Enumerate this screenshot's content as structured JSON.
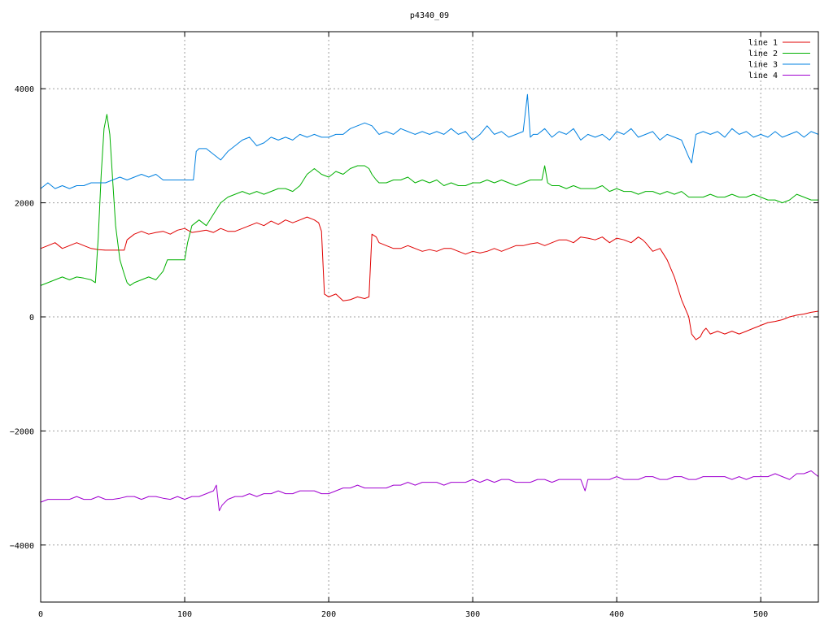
{
  "chart_data": {
    "type": "line",
    "title": "p4340_09",
    "xlabel": "",
    "ylabel": "",
    "xlim": [
      0,
      540
    ],
    "ylim": [
      -5000,
      5000
    ],
    "x_ticks": [
      0,
      100,
      200,
      300,
      400,
      500
    ],
    "y_ticks": [
      -4000,
      -2000,
      0,
      2000,
      4000
    ],
    "grid": true,
    "legend_position": "top-right",
    "series": [
      {
        "name": "line 1",
        "color": "#e00000",
        "x": [
          0,
          5,
          10,
          15,
          20,
          25,
          30,
          35,
          40,
          45,
          50,
          55,
          58,
          60,
          65,
          70,
          75,
          80,
          85,
          90,
          95,
          100,
          105,
          110,
          115,
          120,
          125,
          130,
          135,
          140,
          145,
          150,
          155,
          160,
          165,
          170,
          175,
          180,
          185,
          190,
          193,
          195,
          197,
          200,
          205,
          210,
          215,
          220,
          225,
          228,
          230,
          233,
          235,
          240,
          245,
          250,
          255,
          260,
          265,
          270,
          275,
          280,
          285,
          290,
          295,
          300,
          305,
          310,
          315,
          320,
          325,
          330,
          335,
          340,
          345,
          350,
          355,
          360,
          365,
          370,
          375,
          380,
          385,
          390,
          395,
          400,
          405,
          410,
          415,
          418,
          420,
          425,
          430,
          435,
          440,
          445,
          450,
          452,
          455,
          458,
          460,
          462,
          465,
          470,
          475,
          480,
          485,
          490,
          495,
          500,
          505,
          510,
          515,
          520,
          525,
          530,
          535,
          540
        ],
        "y": [
          1200,
          1250,
          1300,
          1200,
          1250,
          1300,
          1250,
          1200,
          1180,
          1170,
          1170,
          1170,
          1170,
          1350,
          1450,
          1500,
          1450,
          1480,
          1500,
          1450,
          1520,
          1550,
          1480,
          1500,
          1520,
          1480,
          1550,
          1500,
          1500,
          1550,
          1600,
          1650,
          1600,
          1680,
          1620,
          1700,
          1650,
          1700,
          1750,
          1700,
          1650,
          1500,
          400,
          350,
          400,
          280,
          300,
          350,
          320,
          350,
          1450,
          1400,
          1300,
          1250,
          1200,
          1200,
          1250,
          1200,
          1150,
          1180,
          1150,
          1200,
          1200,
          1150,
          1100,
          1150,
          1120,
          1150,
          1200,
          1150,
          1200,
          1250,
          1250,
          1280,
          1300,
          1250,
          1300,
          1350,
          1350,
          1300,
          1400,
          1380,
          1350,
          1400,
          1300,
          1380,
          1350,
          1300,
          1400,
          1350,
          1300,
          1150,
          1200,
          1000,
          700,
          300,
          0,
          -300,
          -400,
          -350,
          -250,
          -200,
          -300,
          -250,
          -300,
          -250,
          -300,
          -250,
          -200,
          -150,
          -100,
          -80,
          -50,
          0,
          30,
          50,
          80,
          100
        ],
        "line_width": 1
      },
      {
        "name": "line 2",
        "color": "#00b000",
        "x": [
          0,
          5,
          10,
          15,
          20,
          25,
          30,
          35,
          38,
          40,
          42,
          44,
          46,
          48,
          50,
          52,
          55,
          58,
          60,
          62,
          65,
          70,
          75,
          80,
          85,
          88,
          90,
          95,
          100,
          102,
          105,
          110,
          115,
          120,
          125,
          130,
          135,
          140,
          145,
          150,
          155,
          160,
          165,
          170,
          175,
          180,
          185,
          190,
          195,
          200,
          205,
          210,
          215,
          220,
          225,
          228,
          230,
          233,
          235,
          240,
          245,
          250,
          255,
          260,
          265,
          270,
          275,
          280,
          285,
          290,
          295,
          300,
          305,
          310,
          315,
          320,
          325,
          330,
          335,
          340,
          345,
          348,
          350,
          352,
          355,
          360,
          365,
          370,
          375,
          380,
          385,
          390,
          395,
          400,
          405,
          410,
          415,
          420,
          425,
          430,
          435,
          440,
          445,
          450,
          455,
          460,
          465,
          470,
          475,
          480,
          485,
          490,
          495,
          500,
          505,
          510,
          515,
          520,
          525,
          530,
          535,
          540
        ],
        "y": [
          550,
          600,
          650,
          700,
          650,
          700,
          680,
          650,
          600,
          1400,
          2500,
          3300,
          3550,
          3200,
          2400,
          1600,
          1000,
          750,
          600,
          550,
          600,
          650,
          700,
          650,
          800,
          1000,
          1000,
          1000,
          1000,
          1300,
          1600,
          1700,
          1600,
          1800,
          2000,
          2100,
          2150,
          2200,
          2150,
          2200,
          2150,
          2200,
          2250,
          2250,
          2200,
          2300,
          2500,
          2600,
          2500,
          2450,
          2550,
          2500,
          2600,
          2650,
          2650,
          2600,
          2500,
          2400,
          2350,
          2350,
          2400,
          2400,
          2450,
          2350,
          2400,
          2350,
          2400,
          2300,
          2350,
          2300,
          2300,
          2350,
          2350,
          2400,
          2350,
          2400,
          2350,
          2300,
          2350,
          2400,
          2400,
          2400,
          2650,
          2350,
          2300,
          2300,
          2250,
          2300,
          2250,
          2250,
          2250,
          2300,
          2200,
          2250,
          2200,
          2200,
          2150,
          2200,
          2200,
          2150,
          2200,
          2150,
          2200,
          2100,
          2100,
          2100,
          2150,
          2100,
          2100,
          2150,
          2100,
          2100,
          2150,
          2100,
          2050,
          2050,
          2000,
          2050,
          2150,
          2100,
          2050,
          2050
        ],
        "line_width": 1
      },
      {
        "name": "line 3",
        "color": "#0080e0",
        "x": [
          0,
          5,
          10,
          15,
          20,
          25,
          30,
          35,
          40,
          45,
          50,
          55,
          60,
          65,
          70,
          75,
          80,
          85,
          90,
          95,
          100,
          105,
          106,
          108,
          110,
          115,
          120,
          125,
          130,
          135,
          140,
          145,
          150,
          155,
          160,
          165,
          170,
          175,
          180,
          185,
          190,
          195,
          200,
          205,
          210,
          215,
          220,
          225,
          230,
          235,
          240,
          245,
          250,
          255,
          260,
          265,
          270,
          275,
          280,
          285,
          290,
          295,
          300,
          305,
          310,
          315,
          320,
          325,
          330,
          335,
          338,
          340,
          342,
          345,
          350,
          355,
          360,
          365,
          370,
          375,
          380,
          385,
          390,
          395,
          400,
          405,
          410,
          415,
          420,
          425,
          430,
          435,
          440,
          445,
          450,
          452,
          455,
          460,
          465,
          470,
          475,
          480,
          485,
          490,
          495,
          500,
          505,
          510,
          515,
          520,
          525,
          530,
          535,
          540
        ],
        "y": [
          2250,
          2350,
          2250,
          2300,
          2250,
          2300,
          2300,
          2350,
          2350,
          2350,
          2400,
          2450,
          2400,
          2450,
          2500,
          2450,
          2500,
          2400,
          2400,
          2400,
          2400,
          2400,
          2400,
          2900,
          2950,
          2950,
          2850,
          2750,
          2900,
          3000,
          3100,
          3150,
          3000,
          3050,
          3150,
          3100,
          3150,
          3100,
          3200,
          3150,
          3200,
          3150,
          3150,
          3200,
          3200,
          3300,
          3350,
          3400,
          3350,
          3200,
          3250,
          3200,
          3300,
          3250,
          3200,
          3250,
          3200,
          3250,
          3200,
          3300,
          3200,
          3250,
          3100,
          3200,
          3350,
          3200,
          3250,
          3150,
          3200,
          3250,
          3900,
          3150,
          3200,
          3200,
          3300,
          3150,
          3250,
          3200,
          3300,
          3100,
          3200,
          3150,
          3200,
          3100,
          3250,
          3200,
          3300,
          3150,
          3200,
          3250,
          3100,
          3200,
          3150,
          3100,
          2800,
          2700,
          3200,
          3250,
          3200,
          3250,
          3150,
          3300,
          3200,
          3250,
          3150,
          3200,
          3150,
          3250,
          3150,
          3200,
          3250,
          3150,
          3250,
          3200
        ],
        "line_width": 1
      },
      {
        "name": "line 4",
        "color": "#a000d0",
        "x": [
          0,
          5,
          10,
          15,
          20,
          25,
          30,
          35,
          40,
          45,
          50,
          55,
          60,
          65,
          70,
          75,
          80,
          85,
          90,
          95,
          100,
          105,
          110,
          115,
          120,
          122,
          124,
          126,
          130,
          135,
          140,
          145,
          150,
          155,
          160,
          165,
          170,
          175,
          180,
          185,
          190,
          195,
          200,
          205,
          210,
          215,
          220,
          225,
          230,
          235,
          240,
          245,
          250,
          255,
          260,
          265,
          270,
          275,
          280,
          285,
          290,
          295,
          300,
          305,
          310,
          315,
          320,
          325,
          330,
          335,
          340,
          345,
          350,
          355,
          360,
          365,
          370,
          375,
          378,
          380,
          385,
          390,
          395,
          400,
          405,
          410,
          415,
          420,
          425,
          430,
          435,
          440,
          445,
          450,
          455,
          460,
          465,
          470,
          475,
          480,
          485,
          490,
          495,
          500,
          505,
          510,
          515,
          520,
          525,
          530,
          535,
          540
        ],
        "y": [
          -3250,
          -3200,
          -3200,
          -3200,
          -3200,
          -3150,
          -3200,
          -3200,
          -3150,
          -3200,
          -3200,
          -3180,
          -3150,
          -3150,
          -3200,
          -3150,
          -3150,
          -3180,
          -3200,
          -3150,
          -3200,
          -3150,
          -3150,
          -3100,
          -3050,
          -2950,
          -3400,
          -3300,
          -3200,
          -3150,
          -3150,
          -3100,
          -3150,
          -3100,
          -3100,
          -3050,
          -3100,
          -3100,
          -3050,
          -3050,
          -3050,
          -3100,
          -3100,
          -3050,
          -3000,
          -3000,
          -2950,
          -3000,
          -3000,
          -3000,
          -3000,
          -2950,
          -2950,
          -2900,
          -2950,
          -2900,
          -2900,
          -2900,
          -2950,
          -2900,
          -2900,
          -2900,
          -2850,
          -2900,
          -2850,
          -2900,
          -2850,
          -2850,
          -2900,
          -2900,
          -2900,
          -2850,
          -2850,
          -2900,
          -2850,
          -2850,
          -2850,
          -2850,
          -3050,
          -2850,
          -2850,
          -2850,
          -2850,
          -2800,
          -2850,
          -2850,
          -2850,
          -2800,
          -2800,
          -2850,
          -2850,
          -2800,
          -2800,
          -2850,
          -2850,
          -2800,
          -2800,
          -2800,
          -2800,
          -2850,
          -2800,
          -2850,
          -2800,
          -2800,
          -2800,
          -2750,
          -2800,
          -2850,
          -2750,
          -2750,
          -2700,
          -2800
        ],
        "line_width": 1
      }
    ]
  }
}
